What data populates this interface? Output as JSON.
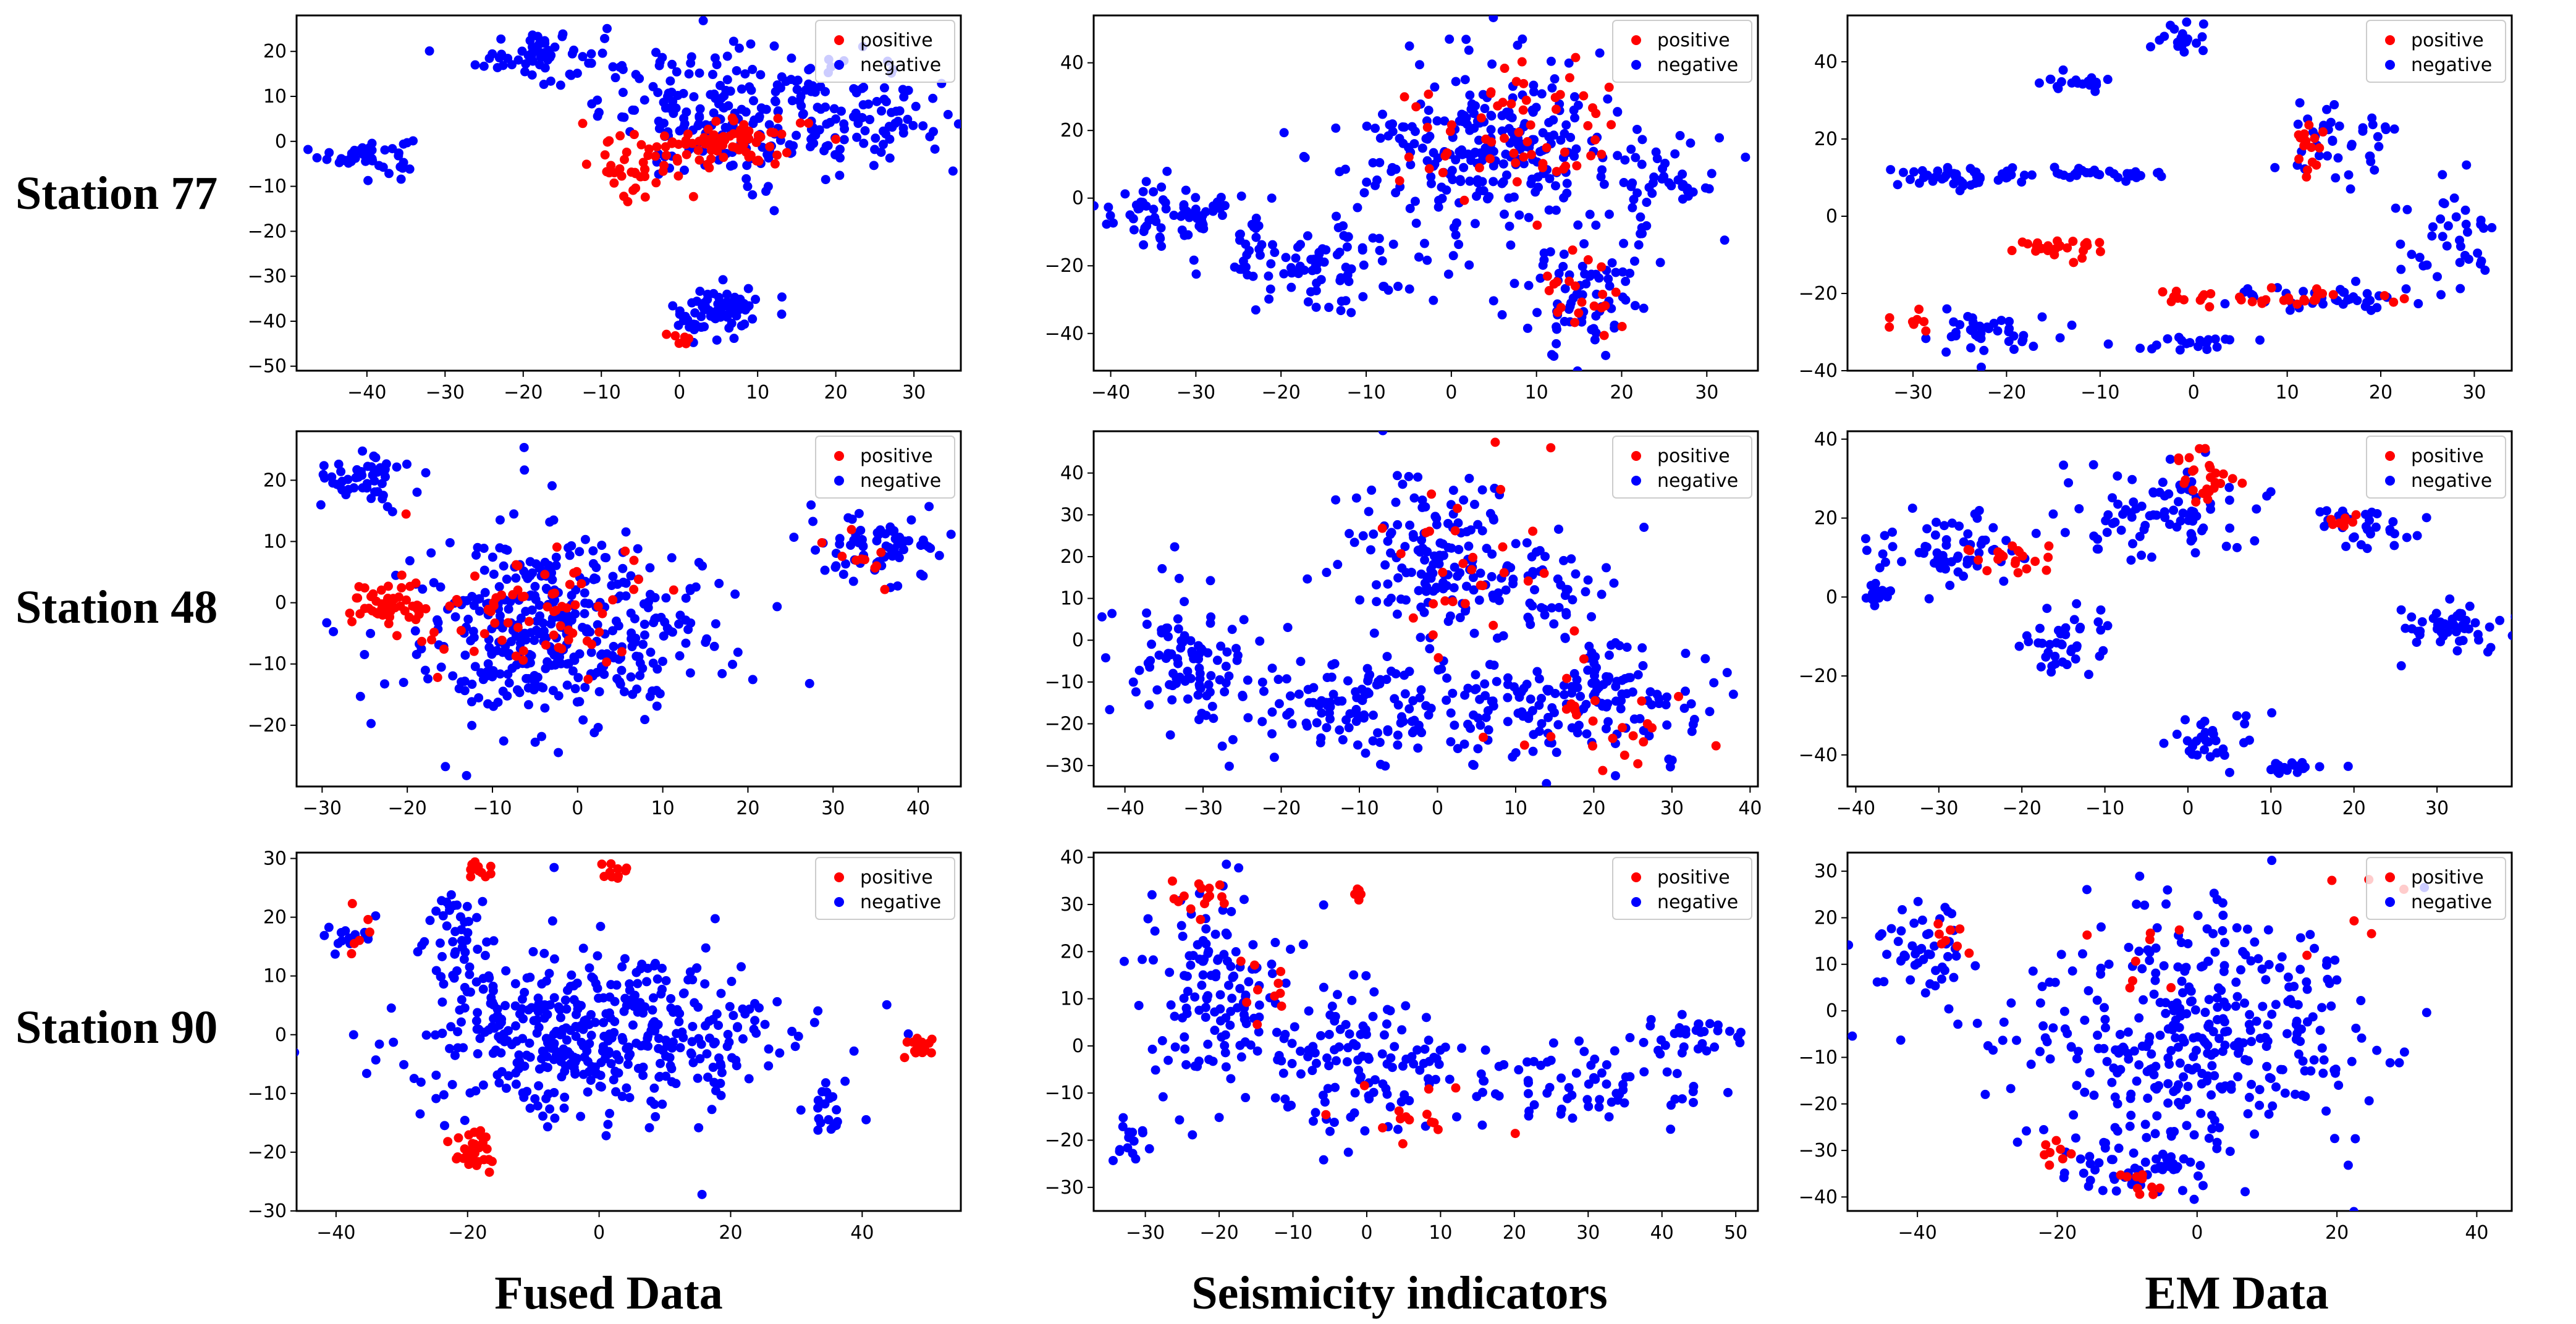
{
  "figure": {
    "row_labels": [
      "Station 77",
      "Station 48",
      "Station 90"
    ],
    "column_labels": [
      "Fused Data",
      "Seismicity indicators",
      "EM Data"
    ],
    "legend": {
      "positive": "positive",
      "negative": "negative"
    },
    "colors": {
      "positive": "#ff0000",
      "negative": "#0000ff",
      "axis": "#000000"
    }
  },
  "chart_data": [
    {
      "id": "s77-fused",
      "type": "scatter",
      "station": "Station 77",
      "source": "Fused Data",
      "xlim": [
        -49,
        36
      ],
      "ylim": [
        -51,
        28
      ],
      "xticks": [
        -40,
        -30,
        -20,
        -10,
        0,
        10,
        20,
        30
      ],
      "yticks": [
        -50,
        -40,
        -30,
        -20,
        -10,
        0,
        10,
        20
      ],
      "legend_position": "top-right",
      "clusters": [
        {
          "label": "negative",
          "cx": -40,
          "cy": -3,
          "sx": 3,
          "sy": 2,
          "n": 45
        },
        {
          "label": "negative",
          "cx": -18,
          "cy": 19,
          "sx": 4,
          "sy": 3,
          "n": 60
        },
        {
          "label": "negative",
          "cx": 8,
          "cy": 6,
          "sx": 9,
          "sy": 7,
          "n": 230
        },
        {
          "label": "negative",
          "cx": 25,
          "cy": 5,
          "sx": 5,
          "sy": 5,
          "n": 60
        },
        {
          "label": "negative",
          "cx": 5,
          "cy": -38,
          "sx": 3,
          "sy": 3,
          "n": 70
        },
        {
          "label": "positive",
          "cx": 5,
          "cy": 0,
          "sx": 6,
          "sy": 3,
          "n": 80
        },
        {
          "label": "positive",
          "cx": -7,
          "cy": -6,
          "sx": 3,
          "sy": 3,
          "n": 30
        },
        {
          "label": "positive",
          "cx": 0,
          "cy": -44,
          "sx": 1,
          "sy": 1,
          "n": 6
        }
      ]
    },
    {
      "id": "s77-seis",
      "type": "scatter",
      "station": "Station 77",
      "source": "Seismicity indicators",
      "xlim": [
        -42,
        36
      ],
      "ylim": [
        -51,
        54
      ],
      "xticks": [
        -40,
        -30,
        -20,
        -10,
        0,
        10,
        20,
        30
      ],
      "yticks": [
        -40,
        -20,
        0,
        20,
        40
      ],
      "legend_position": "top-right",
      "clusters": [
        {
          "label": "negative",
          "cx": -32,
          "cy": -5,
          "sx": 5,
          "sy": 5,
          "n": 80
        },
        {
          "label": "negative",
          "cx": -15,
          "cy": -20,
          "sx": 6,
          "sy": 6,
          "n": 90
        },
        {
          "label": "negative",
          "cx": 5,
          "cy": 15,
          "sx": 8,
          "sy": 13,
          "n": 260
        },
        {
          "label": "negative",
          "cx": 15,
          "cy": -28,
          "sx": 4,
          "sy": 9,
          "n": 80
        },
        {
          "label": "negative",
          "cx": 25,
          "cy": 5,
          "sx": 4,
          "sy": 6,
          "n": 40
        },
        {
          "label": "positive",
          "cx": 8,
          "cy": 20,
          "sx": 7,
          "sy": 10,
          "n": 60
        },
        {
          "label": "positive",
          "cx": 15,
          "cy": -25,
          "sx": 3,
          "sy": 8,
          "n": 22
        }
      ]
    },
    {
      "id": "s77-em",
      "type": "scatter",
      "station": "Station 77",
      "source": "EM Data",
      "xlim": [
        -37,
        34
      ],
      "ylim": [
        -40,
        52
      ],
      "xticks": [
        -30,
        -20,
        -10,
        0,
        10,
        20,
        30
      ],
      "yticks": [
        -40,
        -20,
        0,
        20,
        40
      ],
      "legend_position": "top-right",
      "clusters": [
        {
          "label": "negative",
          "cx": -25,
          "cy": 10,
          "sx": 4,
          "sy": 1.5,
          "n": 50
        },
        {
          "label": "negative",
          "cx": -9,
          "cy": 11,
          "sx": 4,
          "sy": 1,
          "n": 30
        },
        {
          "label": "negative",
          "cx": -13,
          "cy": 35,
          "sx": 2,
          "sy": 2,
          "n": 20
        },
        {
          "label": "negative",
          "cx": -1,
          "cy": 45,
          "sx": 2,
          "sy": 2,
          "n": 20
        },
        {
          "label": "negative",
          "cx": 15,
          "cy": 20,
          "sx": 3,
          "sy": 6,
          "n": 40
        },
        {
          "label": "negative",
          "cx": 27,
          "cy": -5,
          "sx": 3,
          "sy": 7,
          "n": 40
        },
        {
          "label": "negative",
          "cx": -22,
          "cy": -30,
          "sx": 3,
          "sy": 3,
          "n": 40
        },
        {
          "label": "negative",
          "cx": 0,
          "cy": -33,
          "sx": 3,
          "sy": 1,
          "n": 20
        },
        {
          "label": "negative",
          "cx": 13,
          "cy": -21,
          "sx": 5,
          "sy": 1.5,
          "n": 40
        },
        {
          "label": "positive",
          "cx": -14,
          "cy": -8,
          "sx": 3,
          "sy": 1,
          "n": 25
        },
        {
          "label": "positive",
          "cx": 12,
          "cy": -21,
          "sx": 4,
          "sy": 1,
          "n": 25
        },
        {
          "label": "positive",
          "cx": 12,
          "cy": 17,
          "sx": 1,
          "sy": 4,
          "n": 15
        },
        {
          "label": "positive",
          "cx": -30,
          "cy": -27,
          "sx": 2,
          "sy": 1,
          "n": 8
        },
        {
          "label": "positive",
          "cx": 0,
          "cy": -21,
          "sx": 2,
          "sy": 1,
          "n": 10
        }
      ]
    },
    {
      "id": "s48-fused",
      "type": "scatter",
      "station": "Station 48",
      "source": "Fused Data",
      "xlim": [
        -33,
        45
      ],
      "ylim": [
        -30,
        28
      ],
      "xticks": [
        -30,
        -20,
        -10,
        0,
        10,
        20,
        30,
        40
      ],
      "yticks": [
        -20,
        -10,
        0,
        10,
        20
      ],
      "legend_position": "top-right",
      "clusters": [
        {
          "label": "negative",
          "cx": -25,
          "cy": 20,
          "sx": 3,
          "sy": 2,
          "n": 50
        },
        {
          "label": "negative",
          "cx": -3,
          "cy": -5,
          "sx": 9,
          "sy": 8,
          "n": 400
        },
        {
          "label": "negative",
          "cx": 35,
          "cy": 9,
          "sx": 4,
          "sy": 3,
          "n": 70
        },
        {
          "label": "positive",
          "cx": -22,
          "cy": 0,
          "sx": 3,
          "sy": 2,
          "n": 50
        },
        {
          "label": "positive",
          "cx": -5,
          "cy": -2,
          "sx": 9,
          "sy": 6,
          "n": 70
        },
        {
          "label": "positive",
          "cx": 33,
          "cy": 8,
          "sx": 2,
          "sy": 2,
          "n": 10
        }
      ]
    },
    {
      "id": "s48-seis",
      "type": "scatter",
      "station": "Station 48",
      "source": "Seismicity indicators",
      "xlim": [
        -44,
        41
      ],
      "ylim": [
        -35,
        50
      ],
      "xticks": [
        -40,
        -30,
        -20,
        -10,
        0,
        10,
        20,
        30,
        40
      ],
      "yticks": [
        -30,
        -20,
        -10,
        0,
        10,
        20,
        30,
        40
      ],
      "legend_position": "top-right",
      "clusters": [
        {
          "label": "negative",
          "cx": -32,
          "cy": -5,
          "sx": 5,
          "sy": 8,
          "n": 100
        },
        {
          "label": "negative",
          "cx": -10,
          "cy": -15,
          "sx": 8,
          "sy": 7,
          "n": 130
        },
        {
          "label": "negative",
          "cx": 0,
          "cy": 20,
          "sx": 5,
          "sy": 10,
          "n": 140
        },
        {
          "label": "negative",
          "cx": 18,
          "cy": -15,
          "sx": 9,
          "sy": 7,
          "n": 160
        },
        {
          "label": "negative",
          "cx": 14,
          "cy": 12,
          "sx": 5,
          "sy": 7,
          "n": 60
        },
        {
          "label": "positive",
          "cx": 5,
          "cy": 15,
          "sx": 6,
          "sy": 10,
          "n": 30
        },
        {
          "label": "positive",
          "cx": 20,
          "cy": -20,
          "sx": 6,
          "sy": 5,
          "n": 25
        }
      ]
    },
    {
      "id": "s48-em",
      "type": "scatter",
      "station": "Station 48",
      "source": "EM Data",
      "xlim": [
        -41,
        39
      ],
      "ylim": [
        -48,
        42
      ],
      "xticks": [
        -40,
        -30,
        -20,
        -10,
        0,
        10,
        20,
        30
      ],
      "yticks": [
        -40,
        -20,
        0,
        20,
        40
      ],
      "legend_position": "top-right",
      "clusters": [
        {
          "label": "negative",
          "cx": -28,
          "cy": 12,
          "sx": 5,
          "sy": 5,
          "n": 60
        },
        {
          "label": "negative",
          "cx": -37,
          "cy": 1,
          "sx": 1.5,
          "sy": 2,
          "n": 15
        },
        {
          "label": "negative",
          "cx": -3,
          "cy": 20,
          "sx": 6,
          "sy": 7,
          "n": 90
        },
        {
          "label": "negative",
          "cx": -15,
          "cy": -12,
          "sx": 3,
          "sy": 4,
          "n": 40
        },
        {
          "label": "negative",
          "cx": 22,
          "cy": 18,
          "sx": 3,
          "sy": 3,
          "n": 30
        },
        {
          "label": "negative",
          "cx": 32,
          "cy": -8,
          "sx": 3,
          "sy": 4,
          "n": 50
        },
        {
          "label": "negative",
          "cx": 3,
          "cy": -36,
          "sx": 4,
          "sy": 3,
          "n": 30
        },
        {
          "label": "negative",
          "cx": 13,
          "cy": -43,
          "sx": 3,
          "sy": 0.8,
          "n": 20
        },
        {
          "label": "positive",
          "cx": -22,
          "cy": 10,
          "sx": 3,
          "sy": 2,
          "n": 20
        },
        {
          "label": "positive",
          "cx": 2,
          "cy": 30,
          "sx": 2,
          "sy": 3,
          "n": 25
        },
        {
          "label": "positive",
          "cx": 20,
          "cy": 20,
          "sx": 2,
          "sy": 1.5,
          "n": 8
        }
      ]
    },
    {
      "id": "s90-fused",
      "type": "scatter",
      "station": "Station 90",
      "source": "Fused Data",
      "xlim": [
        -46,
        55
      ],
      "ylim": [
        -30,
        31
      ],
      "xticks": [
        -40,
        -20,
        0,
        20,
        40
      ],
      "yticks": [
        -30,
        -20,
        -10,
        0,
        10,
        20,
        30
      ],
      "legend_position": "top-right",
      "clusters": [
        {
          "label": "negative",
          "cx": 0,
          "cy": 0,
          "sx": 14,
          "sy": 7,
          "n": 450
        },
        {
          "label": "negative",
          "cx": -22,
          "cy": 15,
          "sx": 3,
          "sy": 6,
          "n": 50
        },
        {
          "label": "negative",
          "cx": -38,
          "cy": 17,
          "sx": 2,
          "sy": 1.5,
          "n": 15
        },
        {
          "label": "negative",
          "cx": 35,
          "cy": -12,
          "sx": 3,
          "sy": 3,
          "n": 20
        },
        {
          "label": "positive",
          "cx": -19,
          "cy": -20,
          "sx": 2,
          "sy": 2,
          "n": 30
        },
        {
          "label": "positive",
          "cx": -19,
          "cy": 28,
          "sx": 1.2,
          "sy": 0.8,
          "n": 12
        },
        {
          "label": "positive",
          "cx": 2,
          "cy": 28,
          "sx": 1,
          "sy": 0.8,
          "n": 10
        },
        {
          "label": "positive",
          "cx": 49,
          "cy": -2,
          "sx": 1,
          "sy": 1,
          "n": 20
        },
        {
          "label": "positive",
          "cx": -36,
          "cy": 16,
          "sx": 1,
          "sy": 2,
          "n": 6
        }
      ]
    },
    {
      "id": "s90-seis",
      "type": "scatter",
      "station": "Station 90",
      "source": "Seismicity indicators",
      "xlim": [
        -37,
        53
      ],
      "ylim": [
        -35,
        41
      ],
      "xticks": [
        -30,
        -20,
        -10,
        0,
        10,
        20,
        30,
        40,
        50
      ],
      "yticks": [
        -30,
        -20,
        -10,
        0,
        10,
        20,
        30,
        40
      ],
      "legend_position": "top-right",
      "clusters": [
        {
          "label": "negative",
          "cx": -20,
          "cy": 10,
          "sx": 5,
          "sy": 12,
          "n": 140
        },
        {
          "label": "negative",
          "cx": 0,
          "cy": -5,
          "sx": 8,
          "sy": 8,
          "n": 120
        },
        {
          "label": "negative",
          "cx": 30,
          "cy": -8,
          "sx": 10,
          "sy": 4,
          "n": 80
        },
        {
          "label": "negative",
          "cx": 44,
          "cy": 2,
          "sx": 4,
          "sy": 2,
          "n": 30
        },
        {
          "label": "negative",
          "cx": -32,
          "cy": -20,
          "sx": 1.5,
          "sy": 2,
          "n": 15
        },
        {
          "label": "positive",
          "cx": -23,
          "cy": 32,
          "sx": 2,
          "sy": 2,
          "n": 15
        },
        {
          "label": "positive",
          "cx": -1,
          "cy": 32,
          "sx": 1,
          "sy": 1,
          "n": 6
        },
        {
          "label": "positive",
          "cx": -14,
          "cy": 12,
          "sx": 2,
          "sy": 5,
          "n": 10
        },
        {
          "label": "positive",
          "cx": 5,
          "cy": -15,
          "sx": 6,
          "sy": 4,
          "n": 15
        }
      ]
    },
    {
      "id": "s90-em",
      "type": "scatter",
      "station": "Station 90",
      "source": "EM Data",
      "xlim": [
        -50,
        45
      ],
      "ylim": [
        -43,
        34
      ],
      "xticks": [
        -40,
        -20,
        0,
        20,
        40
      ],
      "yticks": [
        -40,
        -30,
        -20,
        -10,
        0,
        10,
        20,
        30
      ],
      "legend_position": "top-right",
      "clusters": [
        {
          "label": "negative",
          "cx": -40,
          "cy": 12,
          "sx": 3,
          "sy": 5,
          "n": 50
        },
        {
          "label": "negative",
          "cx": 0,
          "cy": -5,
          "sx": 12,
          "sy": 14,
          "n": 380
        },
        {
          "label": "negative",
          "cx": -10,
          "cy": -35,
          "sx": 5,
          "sy": 3,
          "n": 40
        },
        {
          "label": "positive",
          "cx": -36,
          "cy": 15,
          "sx": 1.5,
          "sy": 2,
          "n": 8
        },
        {
          "label": "positive",
          "cx": -20,
          "cy": -30,
          "sx": 1.5,
          "sy": 1.5,
          "n": 8
        },
        {
          "label": "positive",
          "cx": -8,
          "cy": -37,
          "sx": 2,
          "sy": 1.5,
          "n": 10
        },
        {
          "label": "positive",
          "cx": -10,
          "cy": 12,
          "sx": 3,
          "sy": 5,
          "n": 8
        },
        {
          "label": "positive",
          "cx": 20,
          "cy": 20,
          "sx": 5,
          "sy": 5,
          "n": 6
        }
      ]
    }
  ]
}
